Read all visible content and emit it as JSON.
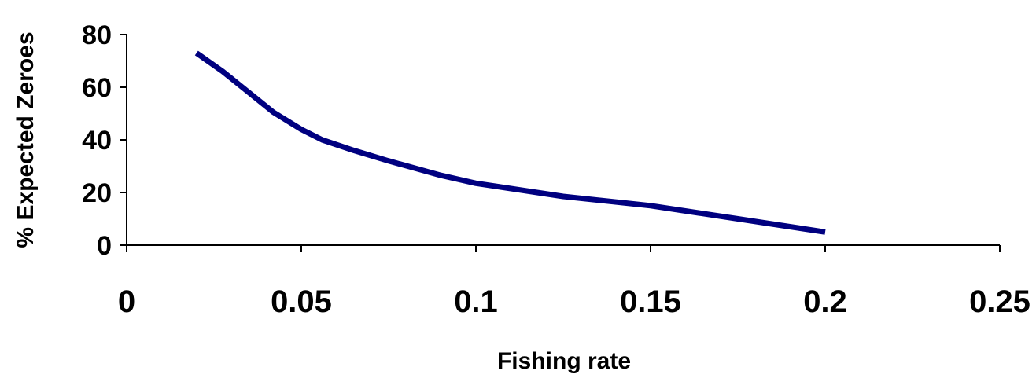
{
  "chart_data": {
    "type": "line",
    "title": "",
    "xlabel": "Fishing rate",
    "ylabel": "% Expected Zeroes",
    "xlim": [
      0,
      0.25
    ],
    "ylim": [
      0,
      80
    ],
    "x_ticks": [
      0,
      0.05,
      0.1,
      0.15,
      0.2,
      0.25
    ],
    "x_tick_labels": [
      "0",
      "0.05",
      "0.1",
      "0.15",
      "0.2",
      "0.25"
    ],
    "y_ticks": [
      0,
      20,
      40,
      60,
      80
    ],
    "y_tick_labels": [
      "0",
      "20",
      "40",
      "60",
      "80"
    ],
    "grid": false,
    "legend": "none",
    "series": [
      {
        "color": "#000080",
        "x": [
          0.02,
          0.0275,
          0.035,
          0.042,
          0.05,
          0.056,
          0.065,
          0.075,
          0.09,
          0.1,
          0.125,
          0.15,
          0.175,
          0.2
        ],
        "y": [
          73,
          66,
          58,
          50.5,
          44,
          40,
          36,
          32,
          26.5,
          23.5,
          18.5,
          15,
          10,
          5
        ]
      }
    ]
  }
}
